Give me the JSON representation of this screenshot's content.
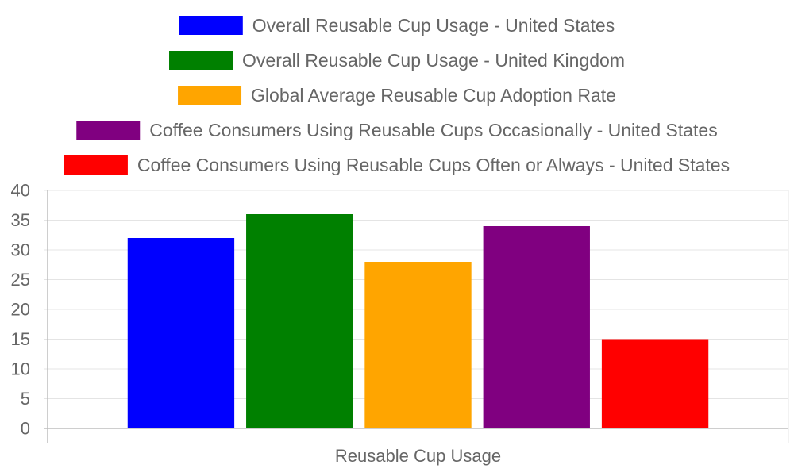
{
  "chart_data": {
    "type": "bar",
    "categories": [
      "Reusable Cup Usage"
    ],
    "xlabel": "Reusable Cup Usage",
    "ylabel": "",
    "title": "",
    "ylim": [
      0,
      40
    ],
    "yticks": [
      0,
      5,
      10,
      15,
      20,
      25,
      30,
      35,
      40
    ],
    "grid": true,
    "legend_position": "top",
    "series": [
      {
        "name": "Overall Reusable Cup Usage - United States",
        "values": [
          32
        ],
        "color": "#0000ff"
      },
      {
        "name": "Overall Reusable Cup Usage - United Kingdom",
        "values": [
          36
        ],
        "color": "#008000"
      },
      {
        "name": "Global Average Reusable Cup Adoption Rate",
        "values": [
          28
        ],
        "color": "#ffa500"
      },
      {
        "name": "Coffee Consumers Using Reusable Cups Occasionally - United States",
        "values": [
          34
        ],
        "color": "#800080"
      },
      {
        "name": "Coffee Consumers Using Reusable Cups Often or Always - United States",
        "values": [
          15
        ],
        "color": "#ff0000"
      }
    ]
  }
}
